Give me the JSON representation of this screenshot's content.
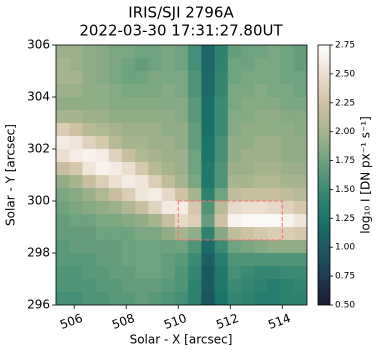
{
  "chart_data": {
    "type": "heatmap",
    "title": "IRIS/SJI 2796A",
    "subtitle": "2022-03-30 17:31:27.80UT",
    "x_label": "Solar - X [arcsec]",
    "y_label": "Solar - Y [arcsec]",
    "colorbar_label": "log₁₀ I [DN px⁻¹ s⁻¹]",
    "xlim": [
      505.3,
      514.95
    ],
    "ylim": [
      296,
      306
    ],
    "xticks": [
      506,
      508,
      510,
      512,
      514
    ],
    "yticks": [
      296,
      298,
      300,
      302,
      304,
      306
    ],
    "clim": [
      0.5,
      2.75
    ],
    "cticks": [
      {
        "value": 0.5,
        "label": "0.50"
      },
      {
        "value": 0.75,
        "label": "0.75"
      },
      {
        "value": 1.0,
        "label": "1.00"
      },
      {
        "value": 1.25,
        "label": "1.25"
      },
      {
        "value": 1.5,
        "label": "1.50"
      },
      {
        "value": 1.75,
        "label": "1.75"
      },
      {
        "value": 2.0,
        "label": "2.00"
      },
      {
        "value": 2.25,
        "label": "2.25"
      },
      {
        "value": 2.5,
        "label": "2.50"
      },
      {
        "value": 2.75,
        "label": "2.75"
      }
    ],
    "colormap": [
      "#1b1b33",
      "#1f3b54",
      "#1c5a62",
      "#1a756b",
      "#3b8a74",
      "#6fa27e",
      "#a7b58e",
      "#cfc2a3",
      "#ecdfd0",
      "#ffffff"
    ],
    "z": [
      [
        1.95,
        1.95,
        1.9,
        1.85,
        1.8,
        1.8,
        1.75,
        1.75,
        1.8,
        1.75,
        1.55,
        1.1,
        1.4,
        1.7,
        1.75,
        1.75,
        1.8,
        1.75,
        1.7
      ],
      [
        2.0,
        1.95,
        1.9,
        1.85,
        1.8,
        1.75,
        1.7,
        1.75,
        1.8,
        1.75,
        1.55,
        1.1,
        1.4,
        1.75,
        1.75,
        1.8,
        1.8,
        1.75,
        1.7
      ],
      [
        2.0,
        2.0,
        1.9,
        1.85,
        1.8,
        1.75,
        1.75,
        1.8,
        1.8,
        1.8,
        1.6,
        1.15,
        1.45,
        1.75,
        1.8,
        1.8,
        1.8,
        1.75,
        1.75
      ],
      [
        1.95,
        1.95,
        1.9,
        1.9,
        1.85,
        1.8,
        1.8,
        1.8,
        1.85,
        1.8,
        1.6,
        1.15,
        1.45,
        1.8,
        1.8,
        1.85,
        1.8,
        1.8,
        1.75
      ],
      [
        1.9,
        1.9,
        1.9,
        1.9,
        1.85,
        1.85,
        1.85,
        1.85,
        1.85,
        1.85,
        1.65,
        1.2,
        1.5,
        1.8,
        1.85,
        1.85,
        1.85,
        1.8,
        1.8
      ],
      [
        2.0,
        2.0,
        1.95,
        1.95,
        1.9,
        1.9,
        1.9,
        1.9,
        1.9,
        1.85,
        1.65,
        1.2,
        1.5,
        1.85,
        1.85,
        1.9,
        1.9,
        1.85,
        1.85
      ],
      [
        2.35,
        2.25,
        2.1,
        2.05,
        2.0,
        1.95,
        1.95,
        1.95,
        1.9,
        1.9,
        1.7,
        1.2,
        1.5,
        1.85,
        1.9,
        1.9,
        1.9,
        1.9,
        1.85
      ],
      [
        2.6,
        2.55,
        2.4,
        2.3,
        2.1,
        2.0,
        2.0,
        1.95,
        1.95,
        1.9,
        1.7,
        1.25,
        1.55,
        1.9,
        1.9,
        1.95,
        1.95,
        1.9,
        1.9
      ],
      [
        2.5,
        2.6,
        2.65,
        2.6,
        2.4,
        2.2,
        2.05,
        2.0,
        1.95,
        1.95,
        1.75,
        1.25,
        1.55,
        1.9,
        1.95,
        1.95,
        1.95,
        1.9,
        1.9
      ],
      [
        2.2,
        2.3,
        2.55,
        2.65,
        2.6,
        2.5,
        2.3,
        2.1,
        2.0,
        1.95,
        1.75,
        1.3,
        1.6,
        1.95,
        1.95,
        2.0,
        2.0,
        1.95,
        1.95
      ],
      [
        1.9,
        2.0,
        2.2,
        2.35,
        2.5,
        2.6,
        2.55,
        2.35,
        2.15,
        2.0,
        1.8,
        1.3,
        1.6,
        2.0,
        2.0,
        2.05,
        2.05,
        2.0,
        2.0
      ],
      [
        1.8,
        1.85,
        1.95,
        2.05,
        2.2,
        2.35,
        2.55,
        2.6,
        2.45,
        2.25,
        2.0,
        1.4,
        1.75,
        2.15,
        2.2,
        2.2,
        2.2,
        2.15,
        2.1
      ],
      [
        1.75,
        1.8,
        1.85,
        1.9,
        1.95,
        2.05,
        2.2,
        2.4,
        2.6,
        2.6,
        2.3,
        1.6,
        2.1,
        2.45,
        2.5,
        2.5,
        2.45,
        2.4,
        2.3
      ],
      [
        1.7,
        1.75,
        1.75,
        1.8,
        1.8,
        1.85,
        1.9,
        2.0,
        2.2,
        2.45,
        2.35,
        1.7,
        2.25,
        2.65,
        2.7,
        2.7,
        2.7,
        2.65,
        2.55
      ],
      [
        1.7,
        1.7,
        1.7,
        1.75,
        1.75,
        1.75,
        1.8,
        1.8,
        1.9,
        2.0,
        1.9,
        1.4,
        1.85,
        2.15,
        2.25,
        2.3,
        2.35,
        2.35,
        2.3
      ],
      [
        1.65,
        1.7,
        1.7,
        1.7,
        1.7,
        1.75,
        1.75,
        1.75,
        1.75,
        1.75,
        1.6,
        1.15,
        1.5,
        1.75,
        1.8,
        1.85,
        1.9,
        1.9,
        1.9
      ],
      [
        1.65,
        1.65,
        1.65,
        1.7,
        1.7,
        1.75,
        1.75,
        1.75,
        1.7,
        1.65,
        1.5,
        1.05,
        1.35,
        1.6,
        1.6,
        1.6,
        1.6,
        1.6,
        1.6
      ],
      [
        1.6,
        1.6,
        1.65,
        1.65,
        1.7,
        1.7,
        1.75,
        1.75,
        1.7,
        1.6,
        1.45,
        1.0,
        1.3,
        1.55,
        1.5,
        1.45,
        1.45,
        1.5,
        1.5
      ],
      [
        1.6,
        1.6,
        1.6,
        1.65,
        1.65,
        1.7,
        1.7,
        1.7,
        1.65,
        1.6,
        1.4,
        1.0,
        1.3,
        1.5,
        1.45,
        1.4,
        1.35,
        1.4,
        1.45
      ],
      [
        1.55,
        1.55,
        1.6,
        1.6,
        1.65,
        1.65,
        1.7,
        1.65,
        1.6,
        1.55,
        1.4,
        0.95,
        1.25,
        1.45,
        1.4,
        1.35,
        1.35,
        1.4,
        1.4
      ]
    ],
    "annotation_box": {
      "x": [
        510,
        514
      ],
      "y": [
        298.5,
        300
      ],
      "color": "#ff6b6b"
    }
  }
}
